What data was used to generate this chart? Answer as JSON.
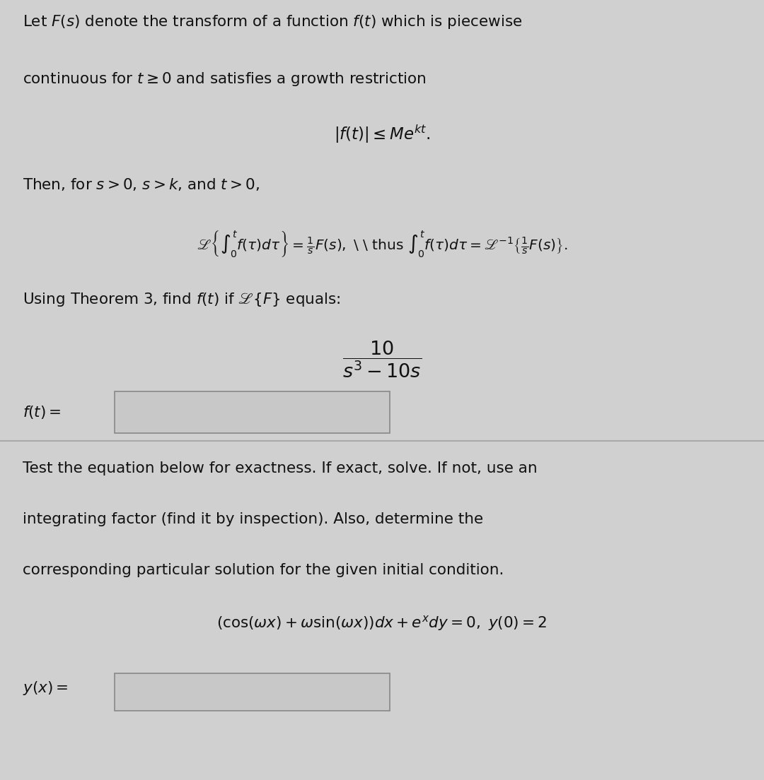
{
  "panel1_bg": "#d0d0d0",
  "panel2_bg": "#e2e2e2",
  "text_color": "#111111",
  "box_facecolor": "#c8c8c8",
  "box_edgecolor": "#888888",
  "figsize": [
    10.8,
    11.04
  ],
  "dpi": 100,
  "p1_line1": "Let $F(s)$ denote the transform of a function $f(t)$ which is piecewise",
  "p1_line2": "continuous for $t \\geq 0$ and satisfies a growth restriction",
  "p1_line3": "$|f(t)| \\leq Me^{kt}.$",
  "p1_line4": "Then, for $s > 0$, $s > k$, and $t > 0$,",
  "p1_line5": "$\\mathscr{L}\\left\\{\\int_0^t f(\\tau)d\\tau\\right\\} = \\frac{1}{s}F(s),$ \\ \\ thus $\\int_0^t f(\\tau)d\\tau = \\mathscr{L}^{-1}\\left\\{\\frac{1}{s}F(s)\\right\\}.$",
  "p1_line6": "Using Theorem 3, find $f(t)$ if $\\mathscr{L}\\{F\\}$ equals:",
  "p1_line7": "$\\dfrac{10}{s^3 - 10s}$",
  "p1_label": "$f(t) =$",
  "p2_line1": "Test the equation below for exactness. If exact, solve. If not, use an",
  "p2_line2": "integrating factor (find it by inspection). Also, determine the",
  "p2_line3": "corresponding particular solution for the given initial condition.",
  "p2_eq": "$(\\cos(\\omega x) + \\omega \\sin(\\omega x))dx + e^x dy = 0,\\ y(0) = 2$",
  "p2_label": "$y(x) =$"
}
